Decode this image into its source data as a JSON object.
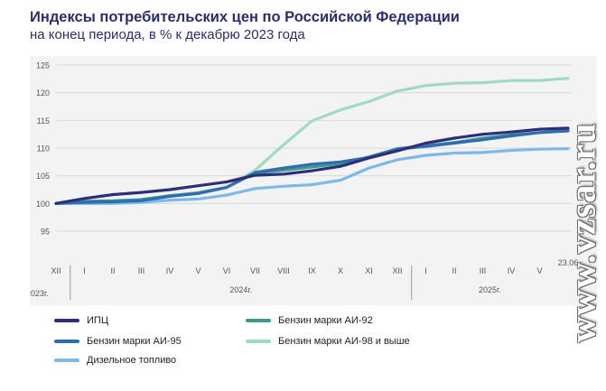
{
  "title": "Индексы потребительских цен по Российской Федерации",
  "subtitle": "на конец периода, в % к декабрю 2023 года",
  "watermark": "www.vzsar.ru",
  "chart_data": {
    "type": "line",
    "x": [
      "XII",
      "I",
      "II",
      "III",
      "IV",
      "V",
      "VI",
      "VII",
      "VIII",
      "IX",
      "X",
      "XI",
      "XII",
      "I",
      "II",
      "III",
      "IV",
      "V",
      "23.06"
    ],
    "year_labels": [
      "2023г.",
      "2024г.",
      "2025г."
    ],
    "ylim": [
      95,
      125
    ],
    "yticks": [
      95,
      100,
      105,
      110,
      115,
      120,
      125
    ],
    "grid": true,
    "legend_position": "bottom",
    "series": [
      {
        "name": "ИПЦ",
        "color": "#2d2e7a",
        "values": [
          100.0,
          100.9,
          101.6,
          102.0,
          102.5,
          103.2,
          103.9,
          105.1,
          105.3,
          105.9,
          106.7,
          108.2,
          109.5,
          110.9,
          111.8,
          112.5,
          112.9,
          113.4,
          113.6
        ]
      },
      {
        "name": "Бензин марки АИ-92",
        "color": "#3d9a8b",
        "values": [
          100.0,
          100.4,
          100.5,
          100.7,
          101.4,
          101.9,
          102.9,
          105.5,
          106.0,
          106.6,
          107.2,
          108.4,
          109.9,
          110.4,
          111.0,
          111.8,
          112.4,
          112.8,
          113.2
        ]
      },
      {
        "name": "Бензин марки АИ-95",
        "color": "#2e6db0",
        "values": [
          100.0,
          100.2,
          100.3,
          100.5,
          101.3,
          101.8,
          102.9,
          105.6,
          106.4,
          107.1,
          107.5,
          108.3,
          109.8,
          110.3,
          110.9,
          111.5,
          112.2,
          112.8,
          113.1
        ]
      },
      {
        "name": "Бензин марки АИ-98 и выше",
        "color": "#9ddcbc",
        "values": [
          100.0,
          100.3,
          100.4,
          100.5,
          101.3,
          102.0,
          102.9,
          106.0,
          110.6,
          114.9,
          116.9,
          118.4,
          120.3,
          121.3,
          121.7,
          121.8,
          122.2,
          122.2,
          122.6
        ]
      },
      {
        "name": "Дизельное топливо",
        "color": "#7db8ea",
        "values": [
          100.0,
          100.0,
          100.0,
          100.2,
          100.6,
          100.8,
          101.5,
          102.7,
          103.1,
          103.4,
          104.2,
          106.4,
          107.9,
          108.7,
          109.1,
          109.2,
          109.6,
          109.8,
          109.9
        ]
      }
    ]
  },
  "legend": [
    {
      "label": "ИПЦ",
      "color": "#2d2e7a"
    },
    {
      "label": "Бензин марки АИ-92",
      "color": "#3d9a8b"
    },
    {
      "label": "Бензин марки АИ-95",
      "color": "#2e6db0"
    },
    {
      "label": "Бензин марки АИ-98 и выше",
      "color": "#9ddcbc"
    },
    {
      "label": "Дизельное топливо",
      "color": "#7db8ea"
    }
  ]
}
